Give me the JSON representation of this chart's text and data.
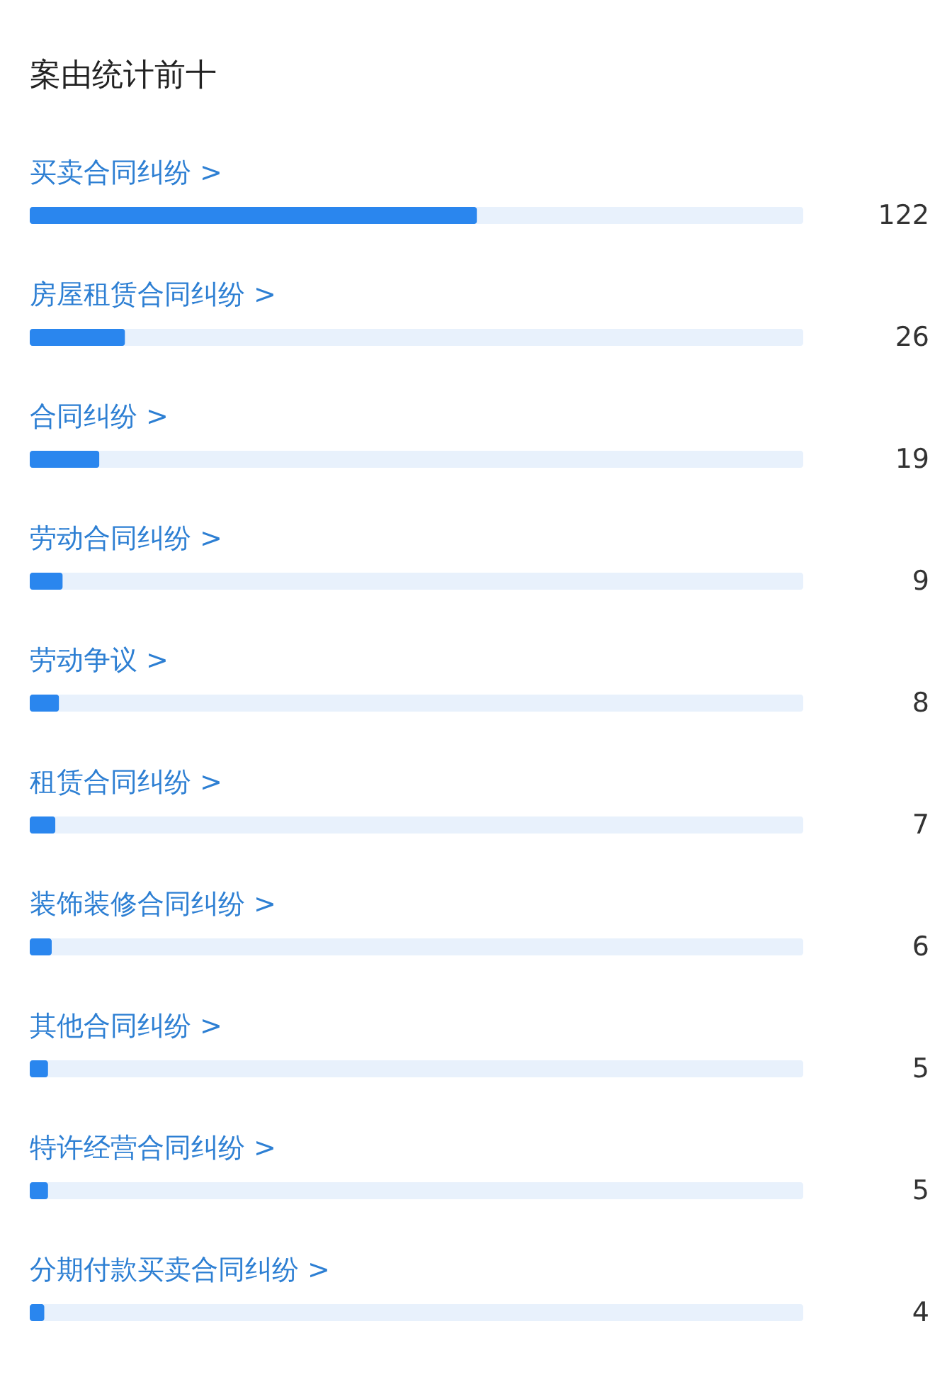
{
  "chart_data": {
    "type": "bar",
    "orientation": "horizontal",
    "title": "案由统计前十",
    "categories": [
      "买卖合同纠纷 >",
      "房屋租赁合同纠纷 >",
      "合同纠纷 >",
      "劳动合同纠纷 >",
      "劳动争议 >",
      "租赁合同纠纷 >",
      "装饰装修合同纠纷 >",
      "其他合同纠纷 >",
      "特许经营合同纠纷 >",
      "分期付款买卖合同纠纷 >"
    ],
    "values": [
      122,
      26,
      19,
      9,
      8,
      7,
      6,
      5,
      5,
      4
    ],
    "color": "#2a86ee",
    "xlim": [
      0,
      211
    ],
    "data_labels": true,
    "tick_labels": false
  }
}
